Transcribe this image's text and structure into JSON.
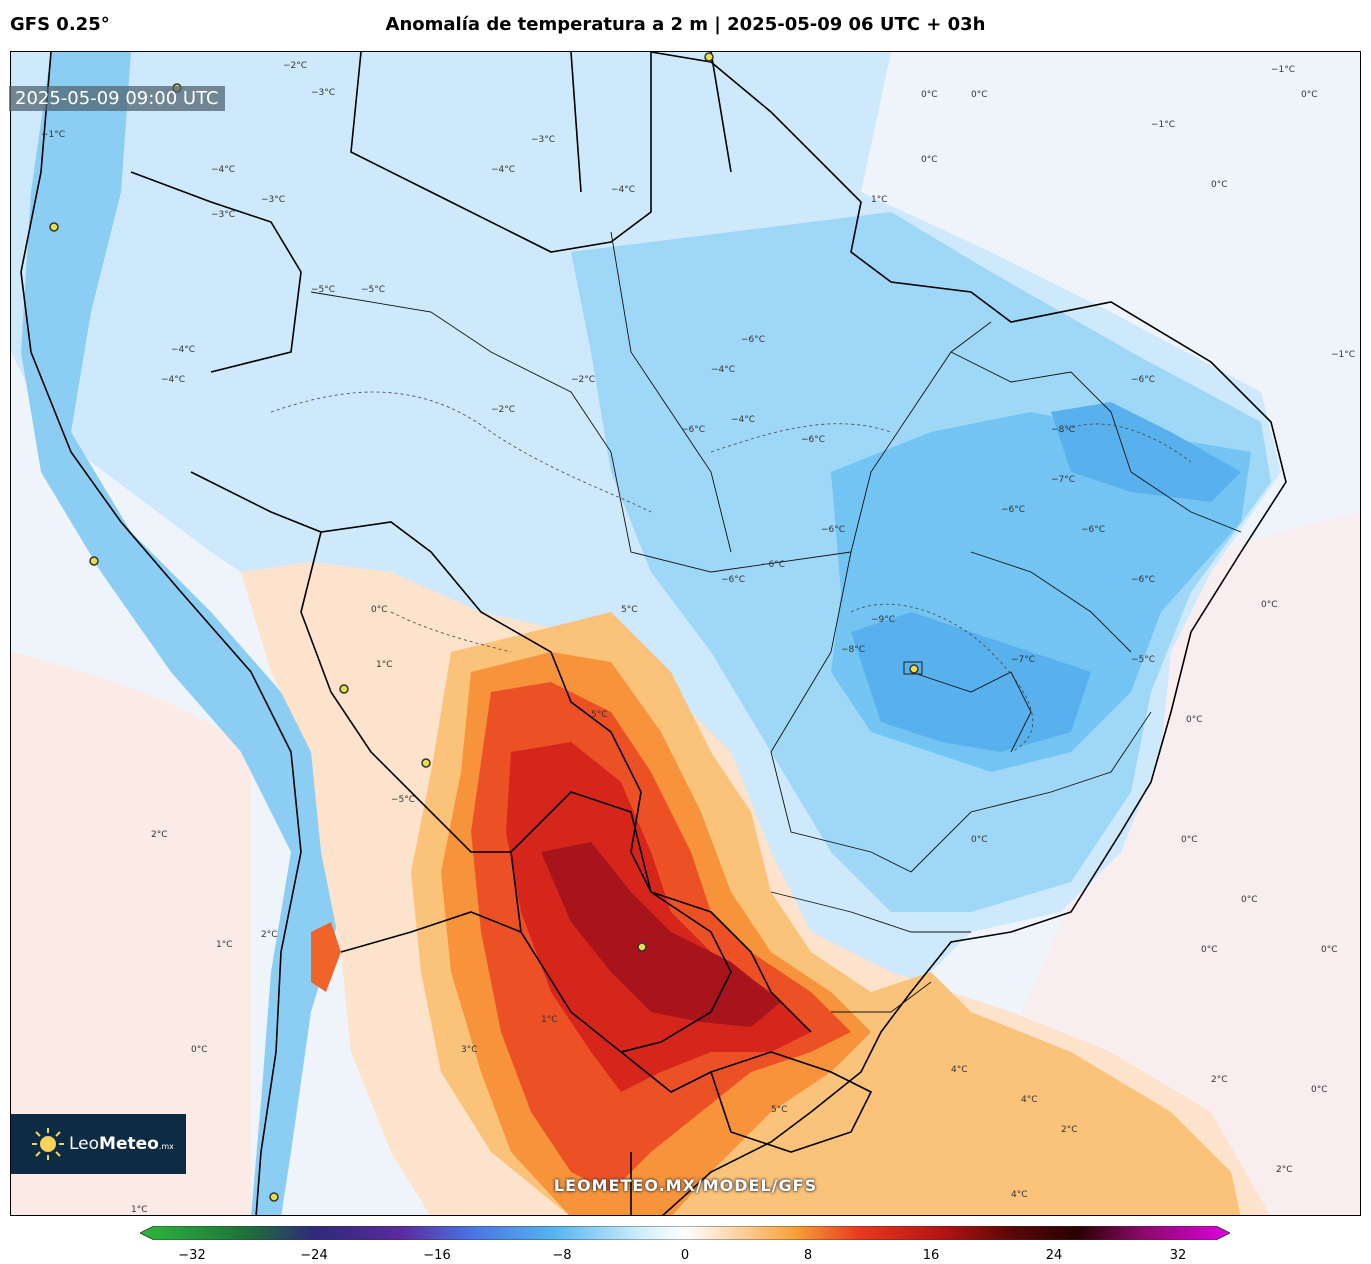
{
  "header": {
    "model": "GFS 0.25°",
    "title": "Anomalía de temperatura a 2 m | 2025-05-09 06 UTC + 03h"
  },
  "valid_time": "2025-05-09 09:00 UTC",
  "logo": {
    "name_light": "Leo",
    "name_bold": "Meteo",
    "suffix": ".mx",
    "icon": "sun-icon"
  },
  "watermark": "LEOMETEO.MX/MODEL/GFS",
  "colorbar": {
    "ticks": [
      "−32",
      "−24",
      "−16",
      "−8",
      "0",
      "8",
      "16",
      "24",
      "32"
    ],
    "range": [
      -32,
      32
    ],
    "colors": [
      "#2db83d",
      "#1f6f3a",
      "#2e2a7a",
      "#5b2a9e",
      "#4a6fe0",
      "#56b4f0",
      "#cfeefc",
      "#ffffff",
      "#fdd9b5",
      "#f7a23a",
      "#e8391e",
      "#b01212",
      "#5a0707",
      "#2a0000",
      "#8a0a6a",
      "#e000e0"
    ]
  },
  "contour_labels": [
    "0°C",
    "−1°C",
    "−2°C",
    "−3°C",
    "−4°C",
    "−5°C",
    "−6°C",
    "−7°C",
    "−8°C",
    "−9°C",
    "1°C",
    "2°C",
    "3°C",
    "4°C",
    "5°C"
  ],
  "colors": {
    "cold_light": "#d7ecfb",
    "cold": "#a9dcf7",
    "cold_strong": "#6fc3f2",
    "cold_deep": "#4aa6ea",
    "warm_light": "#fde3d0",
    "warm": "#fbb96a",
    "hot": "#f0642a",
    "hotter": "#dd2a1c",
    "hottest": "#a3101a"
  }
}
